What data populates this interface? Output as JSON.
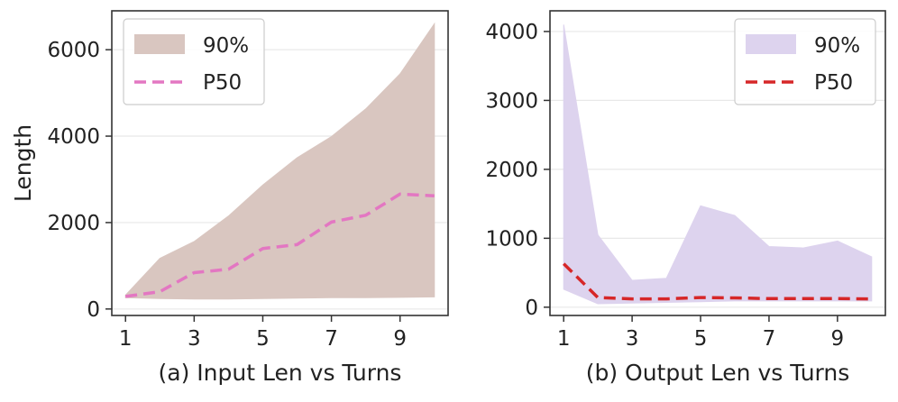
{
  "chart_data": [
    {
      "type": "area",
      "id": "input",
      "xlabel": "(a) Input Len vs Turns",
      "ylabel": "Length",
      "x": [
        1,
        2,
        3,
        4,
        5,
        6,
        7,
        8,
        9,
        10
      ],
      "xticks": [
        1,
        3,
        5,
        7,
        9
      ],
      "xlim": [
        0.6,
        10.4
      ],
      "ylim": [
        -150,
        6900
      ],
      "yticks": [
        0,
        2000,
        4000,
        6000
      ],
      "grid": "horizontal",
      "legend_position": "top-left",
      "band_color": "#d9c6c0",
      "line_color": "#e377c2",
      "series": [
        {
          "name": "90%",
          "kind": "band",
          "lower": [
            260,
            240,
            230,
            230,
            240,
            250,
            260,
            260,
            270,
            280
          ],
          "upper": [
            320,
            1170,
            1560,
            2150,
            2870,
            3500,
            3990,
            4630,
            5440,
            6600
          ]
        },
        {
          "name": "P50",
          "kind": "line",
          "values": [
            290,
            400,
            840,
            920,
            1400,
            1490,
            2010,
            2170,
            2660,
            2620
          ]
        }
      ]
    },
    {
      "type": "area",
      "id": "output",
      "xlabel": "(b) Output Len vs Turns",
      "ylabel": "",
      "x": [
        1,
        2,
        3,
        4,
        5,
        6,
        7,
        8,
        9,
        10
      ],
      "xticks": [
        1,
        3,
        5,
        7,
        9
      ],
      "xlim": [
        0.6,
        10.4
      ],
      "ylim": [
        -120,
        4300
      ],
      "yticks": [
        0,
        1000,
        2000,
        3000,
        4000
      ],
      "grid": "horizontal",
      "legend_position": "top-right",
      "band_color": "#ddd3ee",
      "line_color": "#d62728",
      "series": [
        {
          "name": "90%",
          "kind": "band",
          "lower": [
            260,
            50,
            60,
            70,
            80,
            90,
            90,
            90,
            90,
            90
          ],
          "upper": [
            4100,
            1050,
            390,
            420,
            1470,
            1330,
            880,
            860,
            960,
            730
          ]
        },
        {
          "name": "P50",
          "kind": "line",
          "values": [
            630,
            140,
            120,
            120,
            140,
            135,
            125,
            125,
            125,
            120
          ]
        }
      ]
    }
  ]
}
